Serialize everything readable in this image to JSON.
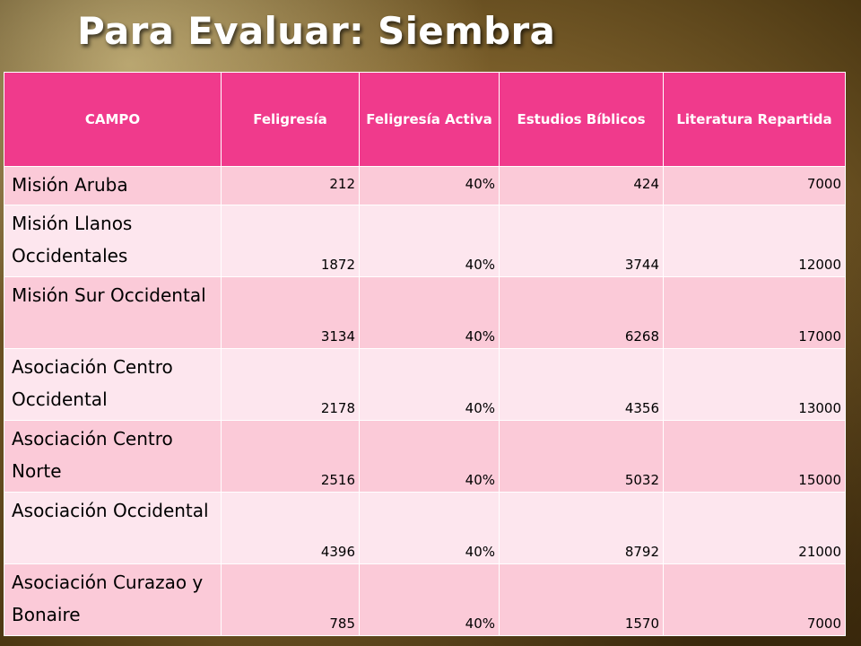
{
  "title": "Para Evaluar: Siembra",
  "table": {
    "headers": [
      "CAMPO",
      "Feligresía",
      "Feligresía Activa",
      "Estudios Bíblicos",
      "Literatura Repartida"
    ],
    "rows": [
      {
        "campo": "Misión Aruba",
        "feligresia": "212",
        "activa": "40%",
        "estudios": "424",
        "literatura": "7000"
      },
      {
        "campo": "Misión Llanos Occidentales",
        "feligresia": "1872",
        "activa": "40%",
        "estudios": "3744",
        "literatura": "12000"
      },
      {
        "campo": "Misión Sur Occidental",
        "feligresia": "3134",
        "activa": "40%",
        "estudios": "6268",
        "literatura": "17000"
      },
      {
        "campo": "Asociación Centro Occidental",
        "feligresia": "2178",
        "activa": "40%",
        "estudios": "4356",
        "literatura": "13000"
      },
      {
        "campo": "Asociación Centro Norte",
        "feligresia": "2516",
        "activa": "40%",
        "estudios": "5032",
        "literatura": "15000"
      },
      {
        "campo": "Asociación Occidental",
        "feligresia": "4396",
        "activa": "40%",
        "estudios": "8792",
        "literatura": "21000"
      },
      {
        "campo": "Asociación Curazao y Bonaire",
        "feligresia": "785",
        "activa": "40%",
        "estudios": "1570",
        "literatura": "7000"
      }
    ]
  }
}
